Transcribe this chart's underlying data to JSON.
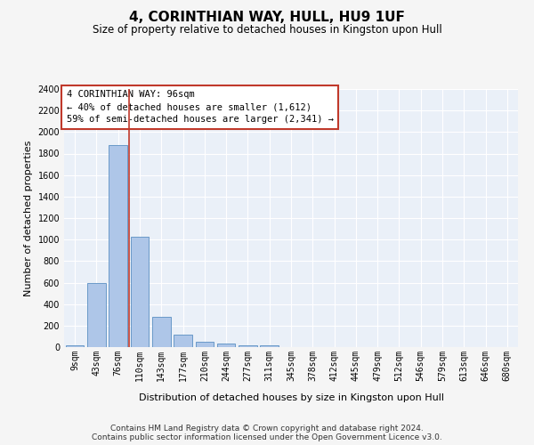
{
  "title": "4, CORINTHIAN WAY, HULL, HU9 1UF",
  "subtitle": "Size of property relative to detached houses in Kingston upon Hull",
  "xlabel": "Distribution of detached houses by size in Kingston upon Hull",
  "ylabel": "Number of detached properties",
  "categories": [
    "9sqm",
    "43sqm",
    "76sqm",
    "110sqm",
    "143sqm",
    "177sqm",
    "210sqm",
    "244sqm",
    "277sqm",
    "311sqm",
    "345sqm",
    "378sqm",
    "412sqm",
    "445sqm",
    "479sqm",
    "512sqm",
    "546sqm",
    "579sqm",
    "613sqm",
    "646sqm",
    "680sqm"
  ],
  "values": [
    20,
    600,
    1880,
    1030,
    285,
    115,
    50,
    35,
    20,
    20,
    0,
    0,
    0,
    0,
    0,
    0,
    0,
    0,
    0,
    0,
    0
  ],
  "bar_color": "#aec6e8",
  "bar_edgecolor": "#5a8fc2",
  "ylim": [
    0,
    2400
  ],
  "yticks": [
    0,
    200,
    400,
    600,
    800,
    1000,
    1200,
    1400,
    1600,
    1800,
    2000,
    2200,
    2400
  ],
  "vline_x": 2.5,
  "vline_color": "#c0392b",
  "annotation_line1": "4 CORINTHIAN WAY: 96sqm",
  "annotation_line2": "← 40% of detached houses are smaller (1,612)",
  "annotation_line3": "59% of semi-detached houses are larger (2,341) →",
  "annotation_box_color": "#c0392b",
  "footer_line1": "Contains HM Land Registry data © Crown copyright and database right 2024.",
  "footer_line2": "Contains public sector information licensed under the Open Government Licence v3.0.",
  "background_color": "#eaf0f8",
  "grid_color": "#ffffff",
  "fig_background": "#f5f5f5",
  "title_fontsize": 11,
  "subtitle_fontsize": 8.5,
  "ylabel_fontsize": 8,
  "xlabel_fontsize": 8,
  "tick_fontsize": 7,
  "annotation_fontsize": 7.5,
  "footer_fontsize": 6.5
}
